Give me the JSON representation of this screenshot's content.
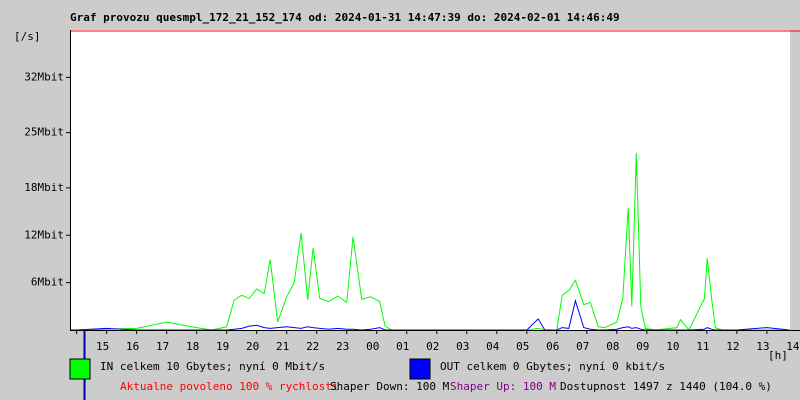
{
  "chart_data": {
    "type": "line",
    "title": "Graf provozu quesmpl_172_21_152_174 od: 2024-01-31 14:47:39 do: 2024-02-01 14:46:49",
    "y_label": "[/s]",
    "x_label": "[h]",
    "x": [
      14.8,
      15,
      16,
      17,
      18,
      19,
      19.5,
      20,
      20.25,
      20.5,
      20.75,
      21,
      21.25,
      21.45,
      21.7,
      22,
      22.25,
      22.48,
      22.7,
      22.88,
      23.1,
      23.4,
      23.7,
      24,
      24.21,
      24.5,
      24.8,
      25.1,
      25.28,
      25.5,
      26,
      27,
      28,
      29,
      30,
      30.38,
      30.6,
      31,
      31.18,
      31.4,
      31.62,
      31.9,
      32.12,
      32.38,
      32.6,
      33,
      33.2,
      33.38,
      33.5,
      33.65,
      33.8,
      33.95,
      34.3,
      35,
      35.12,
      35.4,
      35.92,
      36.01,
      36.15,
      36.28,
      36.5,
      37,
      38,
      38.75
    ],
    "series": [
      {
        "name": "IN celkem 10 Gbytes; nyní 0 Mbit/s",
        "color": "#00ff00",
        "values": [
          0,
          0,
          0.1,
          0.2,
          1.0,
          0.3,
          0,
          0.4,
          3.8,
          4.4,
          4.0,
          5.2,
          4.6,
          8.9,
          1.0,
          4.2,
          6.0,
          12.3,
          3.8,
          10.4,
          4.0,
          3.6,
          4.3,
          3.5,
          11.8,
          3.9,
          4.2,
          3.6,
          0.5,
          0,
          0,
          0,
          0,
          0,
          0,
          0.2,
          0,
          0,
          4.4,
          5.0,
          6.3,
          3.2,
          3.5,
          0.4,
          0.3,
          1.0,
          4.0,
          15.5,
          3.0,
          22.4,
          3.0,
          0.2,
          0,
          0.3,
          1.3,
          0,
          4.0,
          9.1,
          4.2,
          0.3,
          0,
          0,
          0,
          0
        ]
      },
      {
        "name": "OUT celkem 0 Gbytes; nyní 0 kbit/s",
        "color": "#0000ff",
        "values": [
          0,
          0,
          0.2,
          0,
          0,
          0,
          0,
          0,
          0.1,
          0.2,
          0.5,
          0.6,
          0.3,
          0.2,
          0.3,
          0.4,
          0.3,
          0.2,
          0.4,
          0.3,
          0.2,
          0.1,
          0.2,
          0.1,
          0.1,
          0,
          0.1,
          0.3,
          0,
          0,
          0,
          0,
          0,
          0,
          0,
          1.4,
          0,
          0,
          0.3,
          0.2,
          3.7,
          0.3,
          0.1,
          0,
          0,
          0.1,
          0.3,
          0.4,
          0.2,
          0.3,
          0.1,
          0,
          0,
          0,
          0,
          0,
          0.1,
          0.3,
          0.1,
          0,
          0,
          0,
          0.3,
          0
        ]
      }
    ],
    "xlim": [
      14.78,
      38.77
    ],
    "xticks": [
      15,
      16,
      17,
      18,
      19,
      20,
      21,
      22,
      23,
      {
        "value": 24,
        "label": "00"
      },
      {
        "value": 25,
        "label": "01"
      },
      {
        "value": 26,
        "label": "02"
      },
      {
        "value": 27,
        "label": "03"
      },
      {
        "value": 28,
        "label": "04"
      },
      {
        "value": 29,
        "label": "05"
      },
      {
        "value": 30,
        "label": "06"
      },
      {
        "value": 31,
        "label": "07"
      },
      {
        "value": 32,
        "label": "08"
      },
      {
        "value": 33,
        "label": "09"
      },
      {
        "value": 34,
        "label": "10"
      },
      {
        "value": 35,
        "label": "11"
      },
      {
        "value": 36,
        "label": "12"
      },
      {
        "value": 37,
        "label": "13"
      },
      {
        "value": 38,
        "label": "14"
      }
    ],
    "ylim": [
      0,
      38
    ],
    "yticks": [
      {
        "value": 6,
        "label": "6Mbit"
      },
      {
        "value": 12,
        "label": "12Mbit"
      },
      {
        "value": 18,
        "label": "18Mbit"
      },
      {
        "value": 25,
        "label": "25Mbit"
      },
      {
        "value": 32,
        "label": "32Mbit"
      }
    ],
    "grid": false,
    "footer": [
      {
        "text": "Aktualne povoleno 100 % rychlosti",
        "color": "#ff0000"
      },
      {
        "text": "Shaper Down: 100 M",
        "color": "#000000"
      },
      {
        "text": "Shaper Up: 100 M",
        "color": "#800080"
      },
      {
        "text": "Dostupnost 1497 z 1440 (104.0 %)",
        "color": "#000000"
      }
    ]
  }
}
